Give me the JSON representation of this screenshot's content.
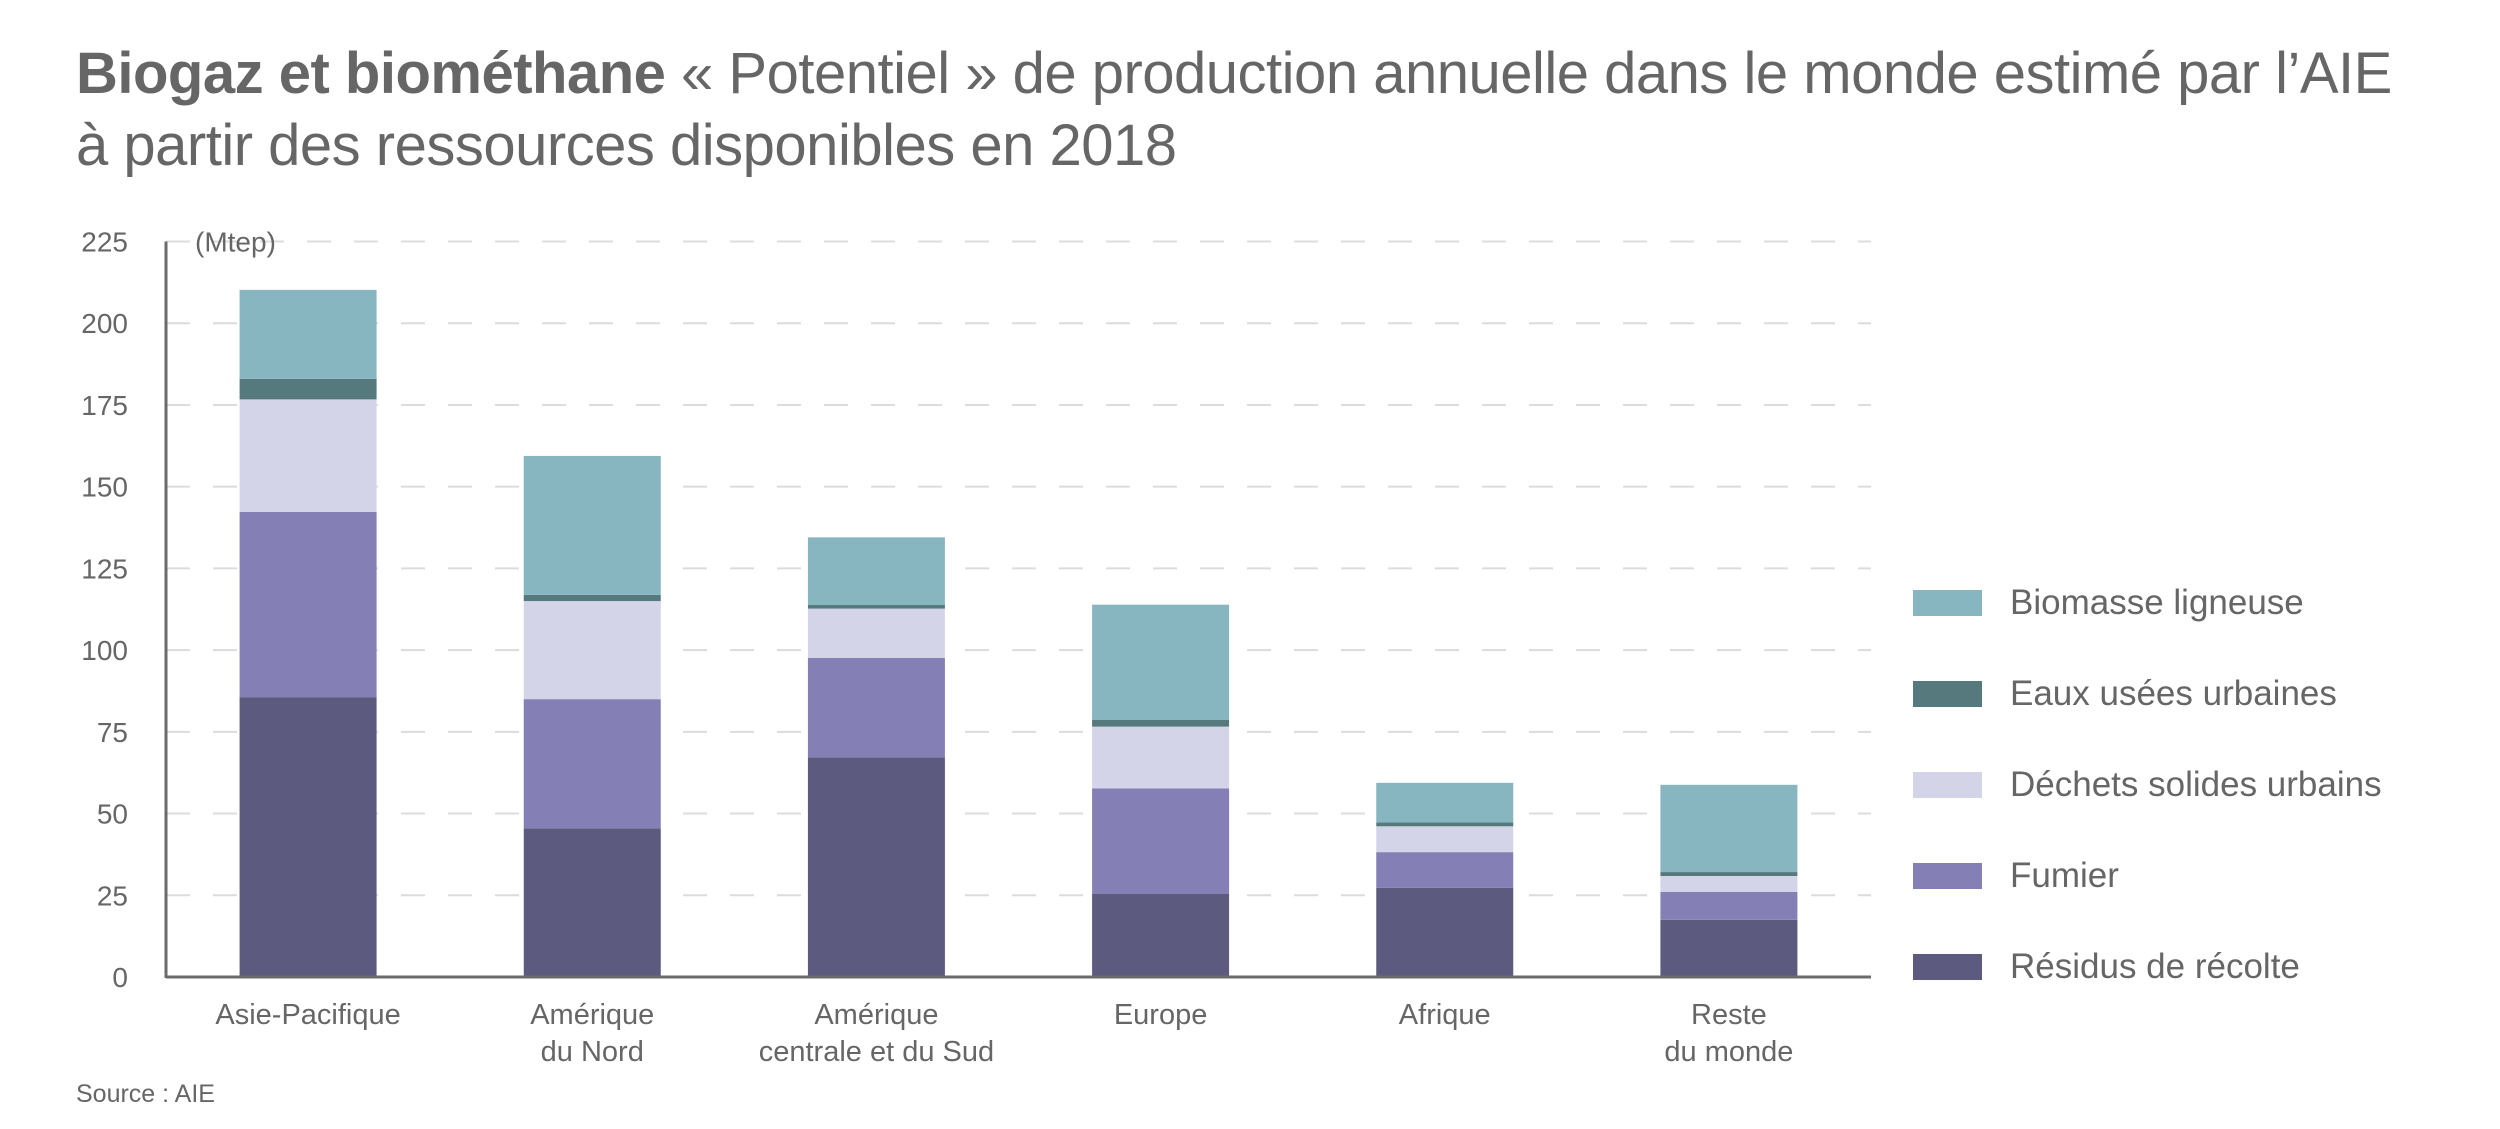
{
  "title": {
    "bold": "Biogaz et biométhane",
    "light": " « Potentiel » de production annuelle dans le monde estimé par l’AIE",
    "line2": "à partir des ressources disponibles en 2018"
  },
  "source": "Source : AIE",
  "chart_data": {
    "type": "bar",
    "stacked": true,
    "title": "Biogaz et biométhane « Potentiel » de production annuelle dans le monde estimé par l’AIE à partir des ressources disponibles en 2018",
    "xlabel": "",
    "ylabel": "(Mtep)",
    "unit": "Mtep",
    "ylim": [
      0,
      225
    ],
    "yticks": [
      0,
      25,
      50,
      75,
      100,
      125,
      150,
      175,
      200,
      225
    ],
    "grid": true,
    "legend_position": "right",
    "categories": [
      [
        "Asie-Pacifique"
      ],
      [
        "Amérique",
        "du Nord"
      ],
      [
        "Amérique",
        "centrale et du Sud"
      ],
      [
        "Europe"
      ],
      [
        "Afrique"
      ],
      [
        "Reste",
        "du monde"
      ]
    ],
    "series": [
      {
        "name": "Résidus de récolte",
        "color": "#5c5a7e",
        "values": [
          85.5,
          45.5,
          67.2,
          25.4,
          27.3,
          17.5
        ]
      },
      {
        "name": "Fumier",
        "color": "#847fb4",
        "values": [
          56.8,
          39.5,
          30.4,
          32.3,
          10.9,
          8.5
        ]
      },
      {
        "name": "Déchets solides urbains",
        "color": "#d4d4e9",
        "values": [
          34.4,
          30.0,
          15.1,
          18.9,
          7.9,
          4.9
        ]
      },
      {
        "name": "Eaux usées urbaines",
        "color": "#56797d",
        "values": [
          6.3,
          1.9,
          1.1,
          2.1,
          1.2,
          1.2
        ]
      },
      {
        "name": "Biomasse ligneuse",
        "color": "#87b6c1",
        "values": [
          27.2,
          42.5,
          20.7,
          35.2,
          12.1,
          26.7
        ]
      }
    ],
    "legend_order": [
      "Biomasse ligneuse",
      "Eaux usées urbaines",
      "Déchets solides urbains",
      "Fumier",
      "Résidus de récolte"
    ]
  }
}
